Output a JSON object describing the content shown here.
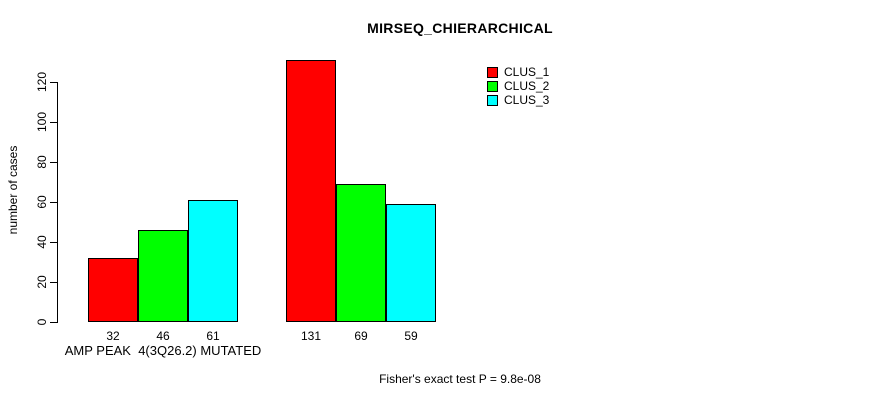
{
  "chart_data": {
    "type": "bar",
    "title": "MIRSEQ_CHIERARCHICAL",
    "ylabel": "number of cases",
    "xlabel": "",
    "ylim": [
      0,
      120
    ],
    "yticks": [
      0,
      20,
      40,
      60,
      80,
      100,
      120
    ],
    "grid": false,
    "legend_position": "top-right",
    "categories": [
      "AMP PEAK  4(3Q26.2) MUTATED",
      ""
    ],
    "series": [
      {
        "name": "CLUS_1",
        "color": "#ff0000",
        "values": [
          32,
          131
        ]
      },
      {
        "name": "CLUS_2",
        "color": "#00ff00",
        "values": [
          46,
          69
        ]
      },
      {
        "name": "CLUS_3",
        "color": "#00ffff",
        "values": [
          61,
          59
        ]
      }
    ],
    "footer": "Fisher's exact test P = 9.8e-08"
  },
  "colors": {
    "background": "#ffffff",
    "axis": "#000000",
    "text": "#000000"
  }
}
